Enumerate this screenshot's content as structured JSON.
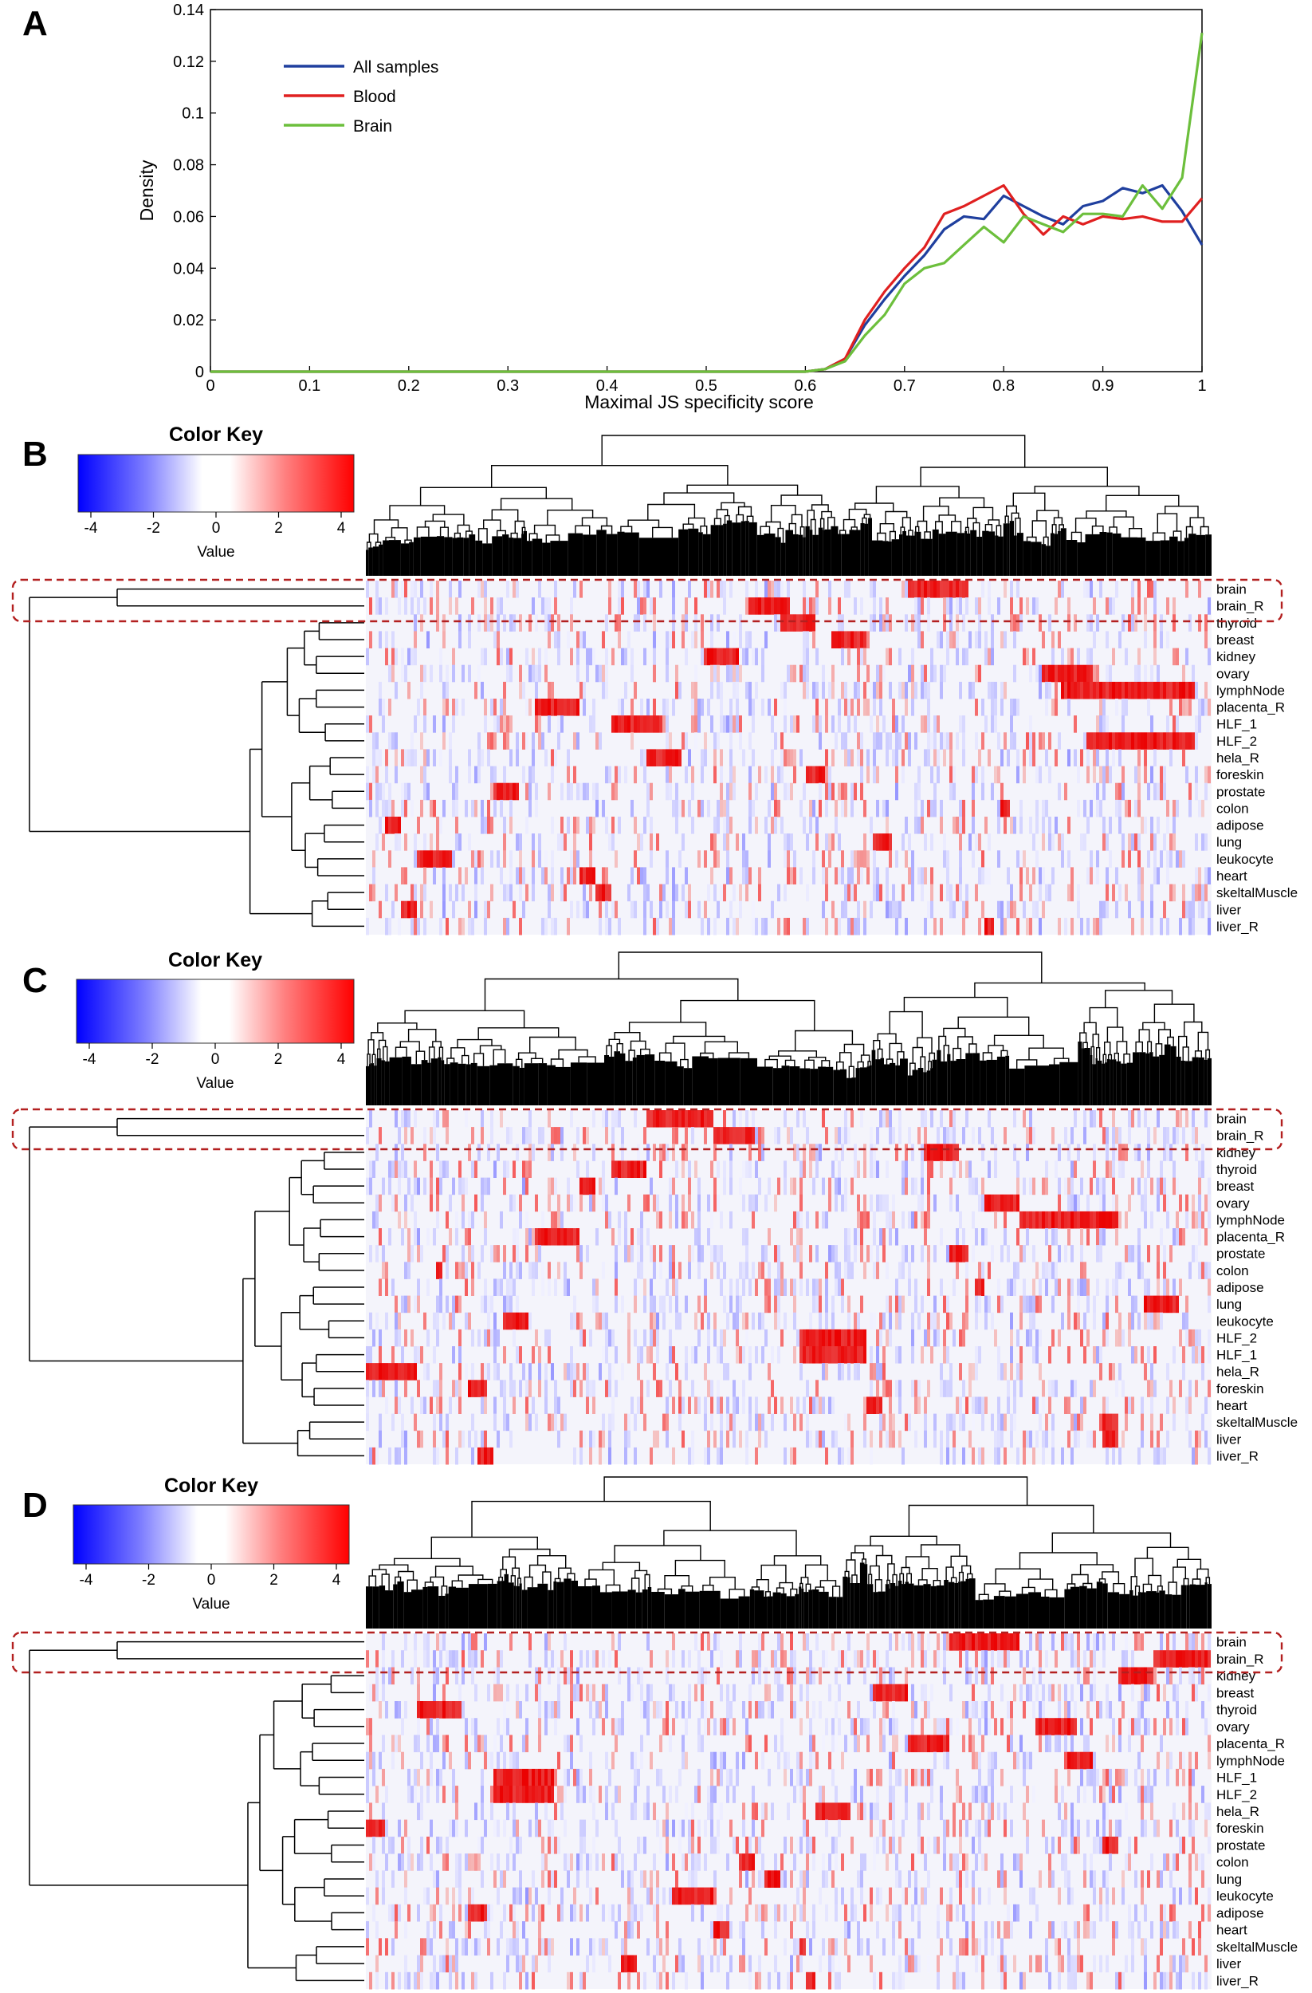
{
  "panels": {
    "a": "A",
    "b": "B",
    "c": "C",
    "d": "D"
  },
  "chart_data": [
    {
      "type": "line",
      "panel": "A",
      "title": "",
      "xlabel": "Maximal JS specificity score",
      "ylabel": "Density",
      "xlim": [
        0,
        1
      ],
      "ylim": [
        0,
        0.14
      ],
      "xticks": [
        "0",
        "0.1",
        "0.2",
        "0.3",
        "0.4",
        "0.5",
        "0.6",
        "0.7",
        "0.8",
        "0.9",
        "1"
      ],
      "yticks": [
        "0",
        "0.02",
        "0.04",
        "0.06",
        "0.08",
        "0.1",
        "0.12",
        "0.14"
      ],
      "grid": false,
      "legend": "top-left",
      "series": [
        {
          "name": "All samples",
          "color": "#1f3f9e",
          "x": [
            0,
            0.6,
            0.62,
            0.64,
            0.66,
            0.68,
            0.7,
            0.72,
            0.74,
            0.76,
            0.78,
            0.8,
            0.82,
            0.84,
            0.86,
            0.88,
            0.9,
            0.92,
            0.94,
            0.96,
            0.98,
            1.0
          ],
          "y": [
            0,
            0,
            0.001,
            0.005,
            0.018,
            0.028,
            0.037,
            0.045,
            0.055,
            0.06,
            0.059,
            0.068,
            0.064,
            0.06,
            0.057,
            0.064,
            0.066,
            0.071,
            0.069,
            0.072,
            0.062,
            0.049
          ]
        },
        {
          "name": "Blood",
          "color": "#e02020",
          "x": [
            0,
            0.6,
            0.62,
            0.64,
            0.66,
            0.68,
            0.7,
            0.72,
            0.74,
            0.76,
            0.78,
            0.8,
            0.82,
            0.84,
            0.86,
            0.88,
            0.9,
            0.92,
            0.94,
            0.96,
            0.98,
            1.0
          ],
          "y": [
            0,
            0,
            0.001,
            0.005,
            0.02,
            0.031,
            0.04,
            0.048,
            0.061,
            0.064,
            0.068,
            0.072,
            0.061,
            0.053,
            0.06,
            0.057,
            0.06,
            0.059,
            0.06,
            0.058,
            0.058,
            0.067
          ]
        },
        {
          "name": "Brain",
          "color": "#6cbf3c",
          "x": [
            0,
            0.6,
            0.62,
            0.64,
            0.66,
            0.68,
            0.7,
            0.72,
            0.74,
            0.76,
            0.78,
            0.8,
            0.82,
            0.84,
            0.86,
            0.88,
            0.9,
            0.92,
            0.94,
            0.96,
            0.98,
            1.0
          ],
          "y": [
            0,
            0,
            0.001,
            0.004,
            0.014,
            0.022,
            0.034,
            0.04,
            0.042,
            0.049,
            0.056,
            0.05,
            0.06,
            0.057,
            0.054,
            0.061,
            0.061,
            0.06,
            0.072,
            0.063,
            0.075,
            0.131
          ]
        }
      ]
    },
    {
      "type": "heatmap",
      "panel": "B",
      "color_key": {
        "title": "Color Key",
        "label": "Value",
        "ticks": [
          "-4",
          "-2",
          "0",
          "2",
          "4"
        ],
        "range": [
          -4,
          4
        ],
        "low_color": "#0000ff",
        "mid_color": "#ffffff",
        "high_color": "#ff0000"
      },
      "rows": [
        "brain",
        "brain_R",
        "thyroid",
        "breast",
        "kidney",
        "ovary",
        "lymphNode",
        "placenta_R",
        "HLF_1",
        "HLF_2",
        "hela_R",
        "foreskin",
        "prostate",
        "colon",
        "adipose",
        "lung",
        "leukocyte",
        "heart",
        "skeltalMuscle",
        "liver",
        "liver_R"
      ],
      "highlighted_rows": [
        "brain",
        "brain_R"
      ],
      "blocks": [
        [
          0.64,
          0.71
        ],
        [
          0.45,
          0.5
        ],
        [
          0.49,
          0.53
        ],
        [
          0.55,
          0.59
        ],
        [
          0.4,
          0.44
        ],
        [
          0.8,
          0.86
        ],
        [
          0.82,
          0.98
        ],
        [
          0.2,
          0.25
        ],
        [
          0.29,
          0.35
        ],
        [
          0.85,
          0.98
        ],
        [
          0.33,
          0.37
        ],
        [
          0.52,
          0.54
        ],
        [
          0.15,
          0.18
        ],
        [
          0.75,
          0.76
        ],
        [
          0.02,
          0.04
        ],
        [
          0.6,
          0.62
        ],
        [
          0.06,
          0.1
        ],
        [
          0.25,
          0.27
        ],
        [
          0.27,
          0.29
        ],
        [
          0.04,
          0.06
        ],
        [
          0.73,
          0.74
        ]
      ]
    },
    {
      "type": "heatmap",
      "panel": "C",
      "color_key": {
        "title": "Color Key",
        "label": "Value",
        "ticks": [
          "-4",
          "-2",
          "0",
          "2",
          "4"
        ],
        "range": [
          -4,
          4
        ],
        "low_color": "#0000ff",
        "mid_color": "#ffffff",
        "high_color": "#ff0000"
      },
      "rows": [
        "brain",
        "brain_R",
        "kidney",
        "thyroid",
        "breast",
        "ovary",
        "lymphNode",
        "placenta_R",
        "prostate",
        "colon",
        "adipose",
        "lung",
        "leukocyte",
        "HLF_2",
        "HLF_1",
        "hela_R",
        "foreskin",
        "heart",
        "skeltalMuscle",
        "liver",
        "liver_R"
      ],
      "highlighted_rows": [
        "brain",
        "brain_R"
      ],
      "blocks": [
        [
          0.33,
          0.41
        ],
        [
          0.41,
          0.46
        ],
        [
          0.66,
          0.7
        ],
        [
          0.29,
          0.33
        ],
        [
          0.25,
          0.27
        ],
        [
          0.73,
          0.77
        ],
        [
          0.77,
          0.89
        ],
        [
          0.2,
          0.25
        ],
        [
          0.69,
          0.71
        ],
        [
          0.08,
          0.09
        ],
        [
          0.72,
          0.73
        ],
        [
          0.92,
          0.96
        ],
        [
          0.16,
          0.19
        ],
        [
          0.51,
          0.59
        ],
        [
          0.51,
          0.59
        ],
        [
          0.0,
          0.06
        ],
        [
          0.12,
          0.14
        ],
        [
          0.59,
          0.61
        ],
        [
          0.87,
          0.89
        ],
        [
          0.87,
          0.89
        ],
        [
          0.13,
          0.15
        ]
      ]
    },
    {
      "type": "heatmap",
      "panel": "D",
      "color_key": {
        "title": "Color Key",
        "label": "Value",
        "ticks": [
          "-4",
          "-2",
          "0",
          "2",
          "4"
        ],
        "range": [
          -4,
          4
        ],
        "low_color": "#0000ff",
        "mid_color": "#ffffff",
        "high_color": "#ff0000"
      },
      "rows": [
        "brain",
        "brain_R",
        "kidney",
        "breast",
        "thyroid",
        "ovary",
        "placenta_R",
        "lymphNode",
        "HLF_1",
        "HLF_2",
        "hela_R",
        "foreskin",
        "prostate",
        "colon",
        "lung",
        "leukocyte",
        "adipose",
        "heart",
        "skeltalMuscle",
        "liver",
        "liver_R"
      ],
      "highlighted_rows": [
        "brain",
        "brain_R"
      ],
      "blocks": [
        [
          0.69,
          0.77
        ],
        [
          0.93,
          1.0
        ],
        [
          0.89,
          0.93
        ],
        [
          0.6,
          0.64
        ],
        [
          0.06,
          0.11
        ],
        [
          0.79,
          0.84
        ],
        [
          0.64,
          0.69
        ],
        [
          0.83,
          0.86
        ],
        [
          0.15,
          0.22
        ],
        [
          0.15,
          0.22
        ],
        [
          0.53,
          0.57
        ],
        [
          0.0,
          0.02
        ],
        [
          0.87,
          0.89
        ],
        [
          0.44,
          0.46
        ],
        [
          0.47,
          0.49
        ],
        [
          0.36,
          0.41
        ],
        [
          0.12,
          0.14
        ],
        [
          0.41,
          0.43
        ],
        [
          0.51,
          0.52
        ],
        [
          0.3,
          0.32
        ],
        [
          0.52,
          0.53
        ]
      ]
    }
  ]
}
